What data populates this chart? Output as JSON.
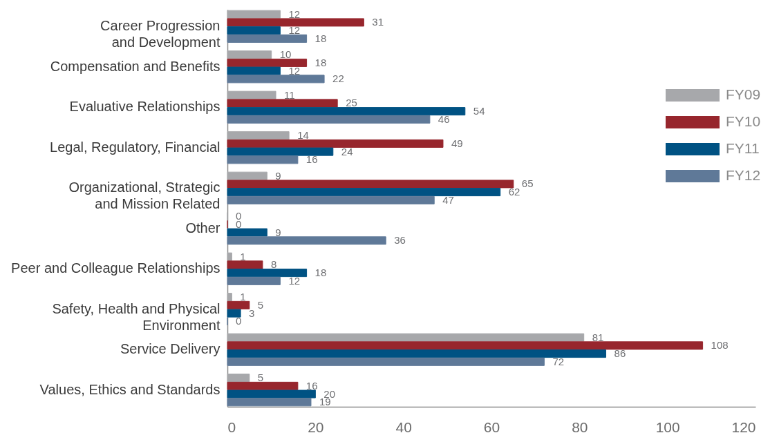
{
  "chart_data": {
    "type": "bar",
    "orientation": "horizontal",
    "data_labels": true,
    "legend": "right",
    "categories": [
      "Career Progression\nand Development",
      "Compensation and Benefits",
      "Evaluative Relationships",
      "Legal, Regulatory, Financial",
      "Organizational, Strategic\nand Mission Related",
      "Other",
      "Peer and Colleague Relationships",
      "Safety, Health and Physical\nEnvironment",
      "Service Delivery",
      "Values, Ethics and Standards"
    ],
    "series": [
      {
        "name": "FY09",
        "color": "#a7a8ab",
        "values": [
          12,
          10,
          11,
          14,
          9,
          0,
          1,
          1,
          81,
          5
        ]
      },
      {
        "name": "FY10",
        "color": "#97262d",
        "values": [
          31,
          18,
          25,
          49,
          65,
          0,
          8,
          5,
          108,
          16
        ]
      },
      {
        "name": "FY11",
        "color": "#005283",
        "values": [
          12,
          12,
          54,
          24,
          62,
          9,
          18,
          3,
          86,
          20
        ]
      },
      {
        "name": "FY12",
        "color": "#5f7998",
        "values": [
          18,
          22,
          46,
          16,
          47,
          36,
          12,
          0,
          72,
          19
        ]
      }
    ],
    "xlim": [
      0,
      120
    ],
    "xticks": [
      0,
      20,
      40,
      60,
      80,
      100,
      120
    ]
  }
}
